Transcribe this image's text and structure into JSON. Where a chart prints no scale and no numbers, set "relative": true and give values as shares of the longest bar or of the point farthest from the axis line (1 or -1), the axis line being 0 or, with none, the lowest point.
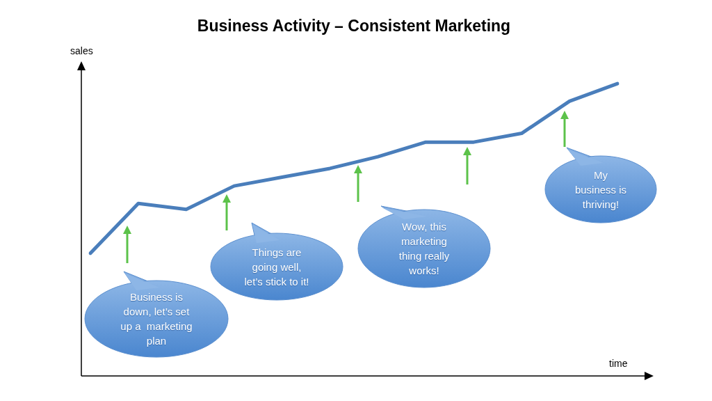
{
  "chart_data": {
    "type": "line",
    "title": "Business Activity – Consistent Marketing",
    "xlabel": "time",
    "ylabel": "sales",
    "relative": true,
    "categories": [
      null,
      null,
      null,
      null,
      null,
      null,
      null,
      null,
      null,
      null,
      null,
      null
    ],
    "series": [
      {
        "color": "#4a7ebb",
        "values": [
          0.42,
          0.59,
          0.57,
          0.65,
          0.68,
          0.71,
          0.75,
          0.8,
          0.8,
          0.83,
          0.94,
          1
        ]
      }
    ],
    "annotations": [
      "Business is\ndown, let’s set\nup a  marketing\nplan",
      "Things are\ngoing well,\nlet’s stick to it!",
      "Wow, this\nmarketing\nthing really\nworks!",
      "My\nbusiness is\nthriving!"
    ],
    "marker": "none",
    "line_style": "solid",
    "legend": false
  }
}
